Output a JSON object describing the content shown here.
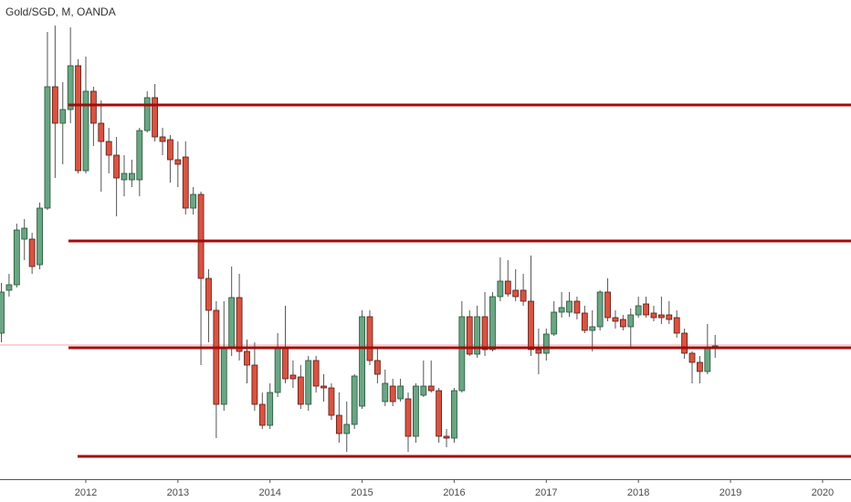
{
  "chart_data": {
    "type": "candlestick",
    "title": "Gold/SGD, M, OANDA",
    "x": [
      1,
      2,
      3,
      4,
      5,
      6,
      7,
      8,
      9,
      10,
      11,
      12,
      13,
      14,
      15,
      16,
      17,
      18,
      19,
      20,
      21,
      22,
      23,
      24,
      25,
      26,
      27,
      28,
      29,
      30,
      31,
      32,
      33,
      34,
      35,
      36,
      37,
      38,
      39,
      40,
      41,
      42,
      43,
      44,
      45,
      46,
      47,
      48,
      49,
      50,
      51,
      52,
      53,
      54,
      55,
      56,
      57,
      58,
      59,
      60,
      61,
      62,
      63,
      64,
      65,
      66,
      67,
      68,
      69,
      70,
      71,
      72,
      73,
      74,
      75,
      76,
      77,
      78,
      79,
      80,
      81,
      82,
      83,
      84,
      85,
      86,
      87,
      88,
      89,
      90,
      91,
      92,
      93,
      94
    ],
    "open": [
      160,
      207,
      213,
      263,
      263,
      235,
      297,
      430,
      390,
      405,
      453,
      338,
      425,
      390,
      370,
      355,
      328,
      328,
      328,
      382,
      418,
      375,
      372,
      350,
      353,
      297,
      312,
      220,
      185,
      82,
      145,
      199,
      140,
      125,
      82,
      59,
      95,
      145,
      114,
      112,
      82,
      130,
      102,
      100,
      70,
      50,
      60,
      80,
      178,
      130,
      85,
      102,
      88,
      88,
      47,
      92,
      102,
      97,
      47,
      45,
      97,
      178,
      137,
      178,
      142,
      200,
      217,
      207,
      207,
      195,
      142,
      138,
      159,
      183,
      183,
      195,
      182,
      163,
      167,
      205,
      177,
      175,
      167,
      180,
      192,
      182,
      180,
      180,
      177,
      160,
      138,
      128,
      118,
      145
    ],
    "high": [
      215,
      225,
      280,
      285,
      270,
      303,
      490,
      497,
      435,
      495,
      460,
      463,
      430,
      415,
      385,
      375,
      355,
      350,
      385,
      425,
      433,
      385,
      377,
      370,
      370,
      320,
      315,
      230,
      195,
      195,
      233,
      225,
      153,
      150,
      95,
      105,
      160,
      190,
      130,
      125,
      135,
      135,
      115,
      105,
      95,
      85,
      115,
      185,
      185,
      145,
      120,
      110,
      110,
      95,
      105,
      130,
      130,
      100,
      55,
      100,
      195,
      185,
      190,
      205,
      205,
      243,
      240,
      230,
      225,
      245,
      165,
      165,
      195,
      205,
      205,
      200,
      190,
      185,
      207,
      220,
      185,
      180,
      187,
      200,
      200,
      190,
      200,
      195,
      185,
      165,
      140,
      135,
      170,
      158
    ],
    "low": [
      150,
      200,
      210,
      240,
      225,
      230,
      295,
      330,
      345,
      390,
      335,
      335,
      365,
      315,
      335,
      288,
      310,
      320,
      310,
      380,
      370,
      355,
      325,
      320,
      290,
      290,
      125,
      150,
      45,
      75,
      135,
      130,
      105,
      75,
      55,
      55,
      90,
      105,
      100,
      77,
      75,
      95,
      85,
      65,
      40,
      30,
      55,
      77,
      125,
      105,
      80,
      80,
      85,
      30,
      40,
      90,
      95,
      40,
      35,
      40,
      95,
      135,
      133,
      135,
      140,
      195,
      200,
      195,
      190,
      135,
      115,
      130,
      157,
      177,
      178,
      175,
      160,
      140,
      163,
      173,
      165,
      163,
      145,
      177,
      177,
      173,
      170,
      170,
      155,
      132,
      105,
      105,
      115,
      133
    ],
    "close": [
      205,
      213,
      273,
      275,
      233,
      297,
      430,
      390,
      405,
      453,
      338,
      425,
      390,
      370,
      355,
      330,
      335,
      335,
      382,
      418,
      375,
      370,
      350,
      345,
      297,
      312,
      220,
      185,
      82,
      145,
      199,
      140,
      125,
      82,
      59,
      95,
      145,
      110,
      110,
      82,
      130,
      102,
      100,
      70,
      50,
      60,
      113,
      178,
      130,
      115,
      105,
      85,
      102,
      47,
      102,
      102,
      97,
      47,
      45,
      97,
      178,
      137,
      178,
      142,
      200,
      217,
      203,
      200,
      195,
      142,
      138,
      159,
      183,
      188,
      195,
      182,
      163,
      167,
      205,
      177,
      173,
      167,
      180,
      190,
      180,
      177,
      177,
      175,
      160,
      138,
      128,
      118,
      145,
      146
    ],
    "up_color": "#6ba583",
    "down_color": "#d75442",
    "up_border": "#225437",
    "down_border": "#5b1a13",
    "levels": [
      {
        "value": 410,
        "start": 9.74
      },
      {
        "value": 261,
        "start": 9.74
      },
      {
        "value": 144,
        "start": 9.74
      },
      {
        "value": 25,
        "start": 10.93
      }
    ],
    "level_color": "#a30b0b",
    "last_price": 147,
    "last_price_color": "#f4a6a6",
    "xlim": [
      0.82,
      111.7
    ],
    "ylim": [
      0,
      525
    ],
    "xticks": [
      {
        "value": 12,
        "label": "2012"
      },
      {
        "value": 24,
        "label": "2013"
      },
      {
        "value": 36,
        "label": "2014"
      },
      {
        "value": 48,
        "label": "2015"
      },
      {
        "value": 60,
        "label": "2016"
      },
      {
        "value": 72,
        "label": "2017"
      },
      {
        "value": 84,
        "label": "2018"
      },
      {
        "value": 96,
        "label": "2019"
      },
      {
        "value": 108,
        "label": "2020"
      }
    ]
  }
}
